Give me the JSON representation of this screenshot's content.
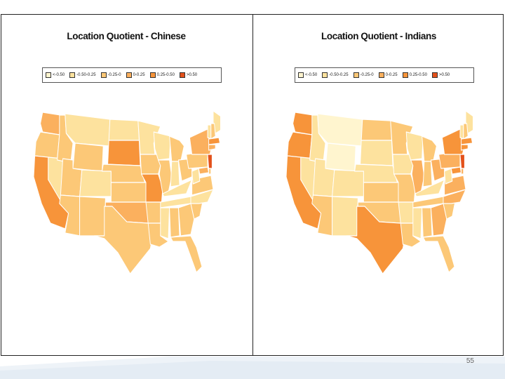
{
  "colors": {
    "c1": "#fff5cf",
    "c2": "#fde29e",
    "c3": "#fcc877",
    "c4": "#fbb05e",
    "c5": "#f7943a",
    "c6": "#e3511b",
    "border": "#ffffff"
  },
  "legend": [
    {
      "label": "<-0.50",
      "color_key": "c1"
    },
    {
      "label": "-0.50-0.25",
      "color_key": "c2"
    },
    {
      "label": "-0.25-0",
      "color_key": "c3"
    },
    {
      "label": "0-0.25",
      "color_key": "c4"
    },
    {
      "label": "0.25-0.50",
      "color_key": "c5"
    },
    {
      "label": ">0.50",
      "color_key": "c6"
    }
  ],
  "maps": [
    {
      "title": "Location Quotient - Chinese",
      "states": {
        "WA": "c4",
        "OR": "c3",
        "CA": "c5",
        "NV": "c2",
        "ID": "c3",
        "MT": "c2",
        "WY": "c3",
        "UT": "c3",
        "AZ": "c3",
        "CO": "c2",
        "NM": "c3",
        "ND": "c2",
        "SD": "c5",
        "NE": "c3",
        "KS": "c3",
        "OK": "c4",
        "TX": "c3",
        "MN": "c2",
        "IA": "c3",
        "MO": "c5",
        "AR": "c3",
        "LA": "c3",
        "WI": "c2",
        "IL": "c3",
        "MI": "c3",
        "IN": "c2",
        "OH": "c3",
        "KY": "c2",
        "TN": "c2",
        "MS": "c2",
        "AL": "c3",
        "GA": "c3",
        "FL": "c3",
        "SC": "c3",
        "NC": "c2",
        "VA": "c3",
        "WV": "c2",
        "PA": "c3",
        "NY": "c4",
        "ME": "c2",
        "VT": "c2",
        "NH": "c3",
        "MA": "c5",
        "CT": "c4",
        "NJ": "c6",
        "MD": "c4",
        "DE": "c3"
      }
    },
    {
      "title": "Location Quotient - Indians",
      "states": {
        "WA": "c5",
        "OR": "c5",
        "CA": "c5",
        "NV": "c2",
        "ID": "c2",
        "MT": "c1",
        "WY": "c1",
        "UT": "c2",
        "AZ": "c3",
        "CO": "c2",
        "NM": "c2",
        "ND": "c3",
        "SD": "c2",
        "NE": "c2",
        "KS": "c3",
        "OK": "c3",
        "TX": "c5",
        "MN": "c3",
        "IA": "c2",
        "MO": "c3",
        "AR": "c2",
        "LA": "c3",
        "WI": "c2",
        "IL": "c4",
        "MI": "c3",
        "IN": "c3",
        "OH": "c4",
        "KY": "c2",
        "TN": "c3",
        "MS": "c2",
        "AL": "c3",
        "GA": "c4",
        "FL": "c3",
        "SC": "c3",
        "NC": "c4",
        "VA": "c4",
        "WV": "c2",
        "PA": "c4",
        "NY": "c5",
        "ME": "c2",
        "VT": "c2",
        "NH": "c3",
        "MA": "c5",
        "CT": "c5",
        "NJ": "c6",
        "MD": "c5",
        "DE": "c4"
      }
    }
  ],
  "page_number": "55"
}
